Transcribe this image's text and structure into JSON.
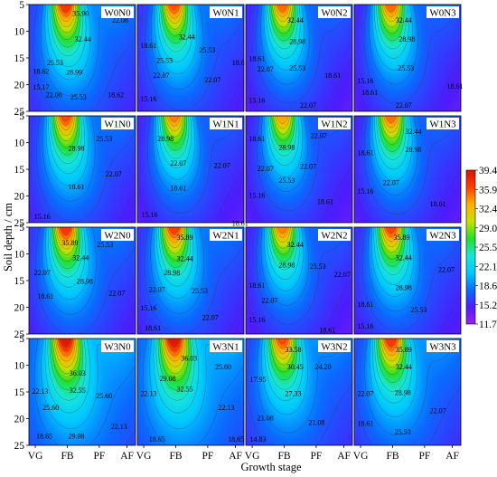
{
  "chart_data": {
    "type": "heatmap",
    "xlabel": "Growth stage",
    "ylabel": "Soil depth / cm",
    "x_categories": [
      "VG",
      "FB",
      "PF",
      "AF"
    ],
    "y_ticks": [
      5,
      10,
      15,
      20,
      25
    ],
    "ylim": [
      5,
      25
    ],
    "y_inverted": true,
    "colorbar": {
      "ticks": [
        "39.4",
        "35.9",
        "32.4",
        "29.0",
        "25.5",
        "22.1",
        "18.6",
        "15.2",
        "11.7"
      ],
      "range": [
        11.7,
        39.4
      ],
      "colors": [
        "#a020f0",
        "#4d1cff",
        "#0a6bff",
        "#00c8ff",
        "#19e6d8",
        "#23e02b",
        "#c8e000",
        "#ffb000",
        "#ff4000",
        "#dc1200"
      ]
    },
    "panels": [
      {
        "name": "W0N0",
        "row": 0,
        "col": 0,
        "peak": 37.0,
        "low": 14.5,
        "labels": [
          {
            "t": "35.90",
            "fx": 0.4,
            "fy": 0.04
          },
          {
            "t": "32.44",
            "fx": 0.42,
            "fy": 0.28
          },
          {
            "t": "22.08",
            "fx": 0.77,
            "fy": 0.1
          },
          {
            "t": "25.53",
            "fx": 0.16,
            "fy": 0.5
          },
          {
            "t": "18.62",
            "fx": 0.03,
            "fy": 0.58
          },
          {
            "t": "28.99",
            "fx": 0.34,
            "fy": 0.59
          },
          {
            "t": "15.17",
            "fx": 0.03,
            "fy": 0.73
          },
          {
            "t": "22.08",
            "fx": 0.15,
            "fy": 0.8
          },
          {
            "t": "25.53",
            "fx": 0.38,
            "fy": 0.82
          },
          {
            "t": "18.62",
            "fx": 0.73,
            "fy": 0.8
          }
        ]
      },
      {
        "name": "W0N1",
        "row": 0,
        "col": 1,
        "peak": 35.8,
        "low": 14.0,
        "labels": [
          {
            "t": "32.44",
            "fx": 0.38,
            "fy": 0.26
          },
          {
            "t": "18.61",
            "fx": 0.02,
            "fy": 0.34
          },
          {
            "t": "25.53",
            "fx": 0.57,
            "fy": 0.38
          },
          {
            "t": "25.53",
            "fx": 0.17,
            "fy": 0.48
          },
          {
            "t": "22.07",
            "fx": 0.14,
            "fy": 0.62
          },
          {
            "t": "22.07",
            "fx": 0.62,
            "fy": 0.66
          },
          {
            "t": "18.61",
            "fx": 0.88,
            "fy": 0.5
          },
          {
            "t": "15.16",
            "fx": 0.02,
            "fy": 0.84
          }
        ]
      },
      {
        "name": "W0N2",
        "row": 0,
        "col": 2,
        "peak": 35.2,
        "low": 13.5,
        "labels": [
          {
            "t": "32.44",
            "fx": 0.38,
            "fy": 0.1
          },
          {
            "t": "28.98",
            "fx": 0.4,
            "fy": 0.3
          },
          {
            "t": "18.61",
            "fx": 0.02,
            "fy": 0.46
          },
          {
            "t": "22.07",
            "fx": 0.1,
            "fy": 0.56
          },
          {
            "t": "25.53",
            "fx": 0.4,
            "fy": 0.55
          },
          {
            "t": "18.61",
            "fx": 0.73,
            "fy": 0.62
          },
          {
            "t": "15.16",
            "fx": 0.02,
            "fy": 0.85
          },
          {
            "t": "22.07",
            "fx": 0.5,
            "fy": 0.9
          }
        ]
      },
      {
        "name": "W0N3",
        "row": 0,
        "col": 3,
        "peak": 35.2,
        "low": 13.5,
        "labels": [
          {
            "t": "32.44",
            "fx": 0.38,
            "fy": 0.1
          },
          {
            "t": "28.98",
            "fx": 0.41,
            "fy": 0.28
          },
          {
            "t": "25.53",
            "fx": 0.4,
            "fy": 0.55
          },
          {
            "t": "15.16",
            "fx": 0.02,
            "fy": 0.67
          },
          {
            "t": "18.61",
            "fx": 0.06,
            "fy": 0.78
          },
          {
            "t": "18.61",
            "fx": 0.86,
            "fy": 0.72
          },
          {
            "t": "22.07",
            "fx": 0.38,
            "fy": 0.9
          }
        ]
      },
      {
        "name": "W1N0",
        "row": 1,
        "col": 0,
        "peak": 36.0,
        "low": 14.0,
        "labels": [
          {
            "t": "25.53",
            "fx": 0.62,
            "fy": 0.17
          },
          {
            "t": "28.98",
            "fx": 0.36,
            "fy": 0.26
          },
          {
            "t": "22.07",
            "fx": 0.71,
            "fy": 0.5
          },
          {
            "t": "18.61",
            "fx": 0.36,
            "fy": 0.62
          },
          {
            "t": "15.16",
            "fx": 0.04,
            "fy": 0.9
          }
        ]
      },
      {
        "name": "W1N1",
        "row": 1,
        "col": 1,
        "peak": 34.5,
        "low": 13.5,
        "labels": [
          {
            "t": "28.98",
            "fx": 0.18,
            "fy": 0.17
          },
          {
            "t": "22.07",
            "fx": 0.3,
            "fy": 0.4
          },
          {
            "t": "22.07",
            "fx": 0.71,
            "fy": 0.42
          },
          {
            "t": "18.61",
            "fx": 0.3,
            "fy": 0.63
          },
          {
            "t": "15.16",
            "fx": 0.03,
            "fy": 0.88
          },
          {
            "t": "18.61",
            "fx": 0.88,
            "fy": 0.96
          }
        ]
      },
      {
        "name": "W1N2",
        "row": 1,
        "col": 2,
        "peak": 33.5,
        "low": 13.5,
        "labels": [
          {
            "t": "18.61",
            "fx": 0.02,
            "fy": 0.17
          },
          {
            "t": "28.98",
            "fx": 0.3,
            "fy": 0.25
          },
          {
            "t": "22.07",
            "fx": 0.6,
            "fy": 0.14
          },
          {
            "t": "22.07",
            "fx": 0.1,
            "fy": 0.45
          },
          {
            "t": "22.07",
            "fx": 0.5,
            "fy": 0.43
          },
          {
            "t": "25.53",
            "fx": 0.3,
            "fy": 0.56
          },
          {
            "t": "15.16",
            "fx": 0.02,
            "fy": 0.7
          },
          {
            "t": "18.61",
            "fx": 0.66,
            "fy": 0.76
          }
        ]
      },
      {
        "name": "W1N3",
        "row": 1,
        "col": 3,
        "peak": 35.0,
        "low": 13.5,
        "labels": [
          {
            "t": "32.44",
            "fx": 0.47,
            "fy": 0.1
          },
          {
            "t": "28.98",
            "fx": 0.47,
            "fy": 0.27
          },
          {
            "t": "18.61",
            "fx": 0.02,
            "fy": 0.3
          },
          {
            "t": "22.07",
            "fx": 0.26,
            "fy": 0.58
          },
          {
            "t": "15.16",
            "fx": 0.02,
            "fy": 0.66
          },
          {
            "t": "18.61",
            "fx": 0.7,
            "fy": 0.78
          }
        ]
      },
      {
        "name": "W2N0",
        "row": 2,
        "col": 0,
        "peak": 37.0,
        "low": 14.0,
        "labels": [
          {
            "t": "35.89",
            "fx": 0.3,
            "fy": 0.1
          },
          {
            "t": "25.53",
            "fx": 0.63,
            "fy": 0.12
          },
          {
            "t": "32.44",
            "fx": 0.4,
            "fy": 0.24
          },
          {
            "t": "22.07",
            "fx": 0.04,
            "fy": 0.38
          },
          {
            "t": "28.98",
            "fx": 0.44,
            "fy": 0.46
          },
          {
            "t": "22.07",
            "fx": 0.74,
            "fy": 0.57
          },
          {
            "t": "18.61",
            "fx": 0.07,
            "fy": 0.6
          }
        ]
      },
      {
        "name": "W2N1",
        "row": 2,
        "col": 1,
        "peak": 36.5,
        "low": 14.0,
        "labels": [
          {
            "t": "35.89",
            "fx": 0.36,
            "fy": 0.05
          },
          {
            "t": "32.44",
            "fx": 0.36,
            "fy": 0.25
          },
          {
            "t": "28.98",
            "fx": 0.24,
            "fy": 0.38
          },
          {
            "t": "22.07",
            "fx": 0.1,
            "fy": 0.54
          },
          {
            "t": "25.53",
            "fx": 0.5,
            "fy": 0.55
          },
          {
            "t": "15.16",
            "fx": 0.02,
            "fy": 0.71
          },
          {
            "t": "22.07",
            "fx": 0.6,
            "fy": 0.8
          },
          {
            "t": "18.61",
            "fx": 0.06,
            "fy": 0.9
          }
        ]
      },
      {
        "name": "W2N2",
        "row": 2,
        "col": 2,
        "peak": 34.5,
        "low": 13.5,
        "labels": [
          {
            "t": "32.44",
            "fx": 0.38,
            "fy": 0.12
          },
          {
            "t": "28.98",
            "fx": 0.3,
            "fy": 0.31
          },
          {
            "t": "25.53",
            "fx": 0.59,
            "fy": 0.32
          },
          {
            "t": "22.07",
            "fx": 0.82,
            "fy": 0.4
          },
          {
            "t": "18.61",
            "fx": 0.02,
            "fy": 0.5
          },
          {
            "t": "22.07",
            "fx": 0.14,
            "fy": 0.64
          },
          {
            "t": "15.16",
            "fx": 0.02,
            "fy": 0.82
          },
          {
            "t": "18.61",
            "fx": 0.68,
            "fy": 0.92
          }
        ]
      },
      {
        "name": "W2N3",
        "row": 2,
        "col": 3,
        "peak": 36.2,
        "low": 13.8,
        "labels": [
          {
            "t": "35.89",
            "fx": 0.36,
            "fy": 0.05
          },
          {
            "t": "32.44",
            "fx": 0.38,
            "fy": 0.24
          },
          {
            "t": "22.07",
            "fx": 0.78,
            "fy": 0.35
          },
          {
            "t": "28.98",
            "fx": 0.38,
            "fy": 0.52
          },
          {
            "t": "25.53",
            "fx": 0.52,
            "fy": 0.73
          },
          {
            "t": "18.61",
            "fx": 0.02,
            "fy": 0.68
          },
          {
            "t": "15.16",
            "fx": 0.02,
            "fy": 0.88
          }
        ]
      },
      {
        "name": "W3N0",
        "row": 3,
        "col": 0,
        "peak": 39.0,
        "low": 16.0,
        "labels": [
          {
            "t": "36.03",
            "fx": 0.37,
            "fy": 0.28
          },
          {
            "t": "22.13",
            "fx": 0.02,
            "fy": 0.45
          },
          {
            "t": "32.55",
            "fx": 0.37,
            "fy": 0.44
          },
          {
            "t": "25.60",
            "fx": 0.62,
            "fy": 0.49
          },
          {
            "t": "25.60",
            "fx": 0.12,
            "fy": 0.6
          },
          {
            "t": "22.13",
            "fx": 0.76,
            "fy": 0.78
          },
          {
            "t": "18.65",
            "fx": 0.06,
            "fy": 0.87
          },
          {
            "t": "29.08",
            "fx": 0.36,
            "fy": 0.87
          }
        ]
      },
      {
        "name": "W3N1",
        "row": 3,
        "col": 1,
        "peak": 39.0,
        "low": 16.0,
        "labels": [
          {
            "t": "36.03",
            "fx": 0.4,
            "fy": 0.14
          },
          {
            "t": "25.60",
            "fx": 0.72,
            "fy": 0.22
          },
          {
            "t": "29.08",
            "fx": 0.2,
            "fy": 0.33
          },
          {
            "t": "32.55",
            "fx": 0.36,
            "fy": 0.43
          },
          {
            "t": "22.13",
            "fx": 0.02,
            "fy": 0.47
          },
          {
            "t": "22.13",
            "fx": 0.75,
            "fy": 0.6
          },
          {
            "t": "18.65",
            "fx": 0.1,
            "fy": 0.9
          },
          {
            "t": "18.65",
            "fx": 0.84,
            "fy": 0.9
          }
        ]
      },
      {
        "name": "W3N2",
        "row": 3,
        "col": 2,
        "peak": 36.0,
        "low": 15.0,
        "labels": [
          {
            "t": "33.58",
            "fx": 0.36,
            "fy": 0.06
          },
          {
            "t": "30.45",
            "fx": 0.38,
            "fy": 0.22
          },
          {
            "t": "24.20",
            "fx": 0.64,
            "fy": 0.22
          },
          {
            "t": "17.95",
            "fx": 0.03,
            "fy": 0.34
          },
          {
            "t": "27.33",
            "fx": 0.36,
            "fy": 0.47
          },
          {
            "t": "21.08",
            "fx": 0.1,
            "fy": 0.7
          },
          {
            "t": "21.08",
            "fx": 0.58,
            "fy": 0.74
          },
          {
            "t": "14.83",
            "fx": 0.03,
            "fy": 0.9
          }
        ]
      },
      {
        "name": "W3N3",
        "row": 3,
        "col": 3,
        "peak": 37.0,
        "low": 15.0,
        "labels": [
          {
            "t": "35.89",
            "fx": 0.38,
            "fy": 0.06
          },
          {
            "t": "32.44",
            "fx": 0.38,
            "fy": 0.22
          },
          {
            "t": "22.07",
            "fx": 0.02,
            "fy": 0.47
          },
          {
            "t": "28.98",
            "fx": 0.37,
            "fy": 0.46
          },
          {
            "t": "22.07",
            "fx": 0.7,
            "fy": 0.63
          },
          {
            "t": "18.61",
            "fx": 0.02,
            "fy": 0.75
          },
          {
            "t": "25.53",
            "fx": 0.37,
            "fy": 0.83
          }
        ]
      }
    ]
  }
}
